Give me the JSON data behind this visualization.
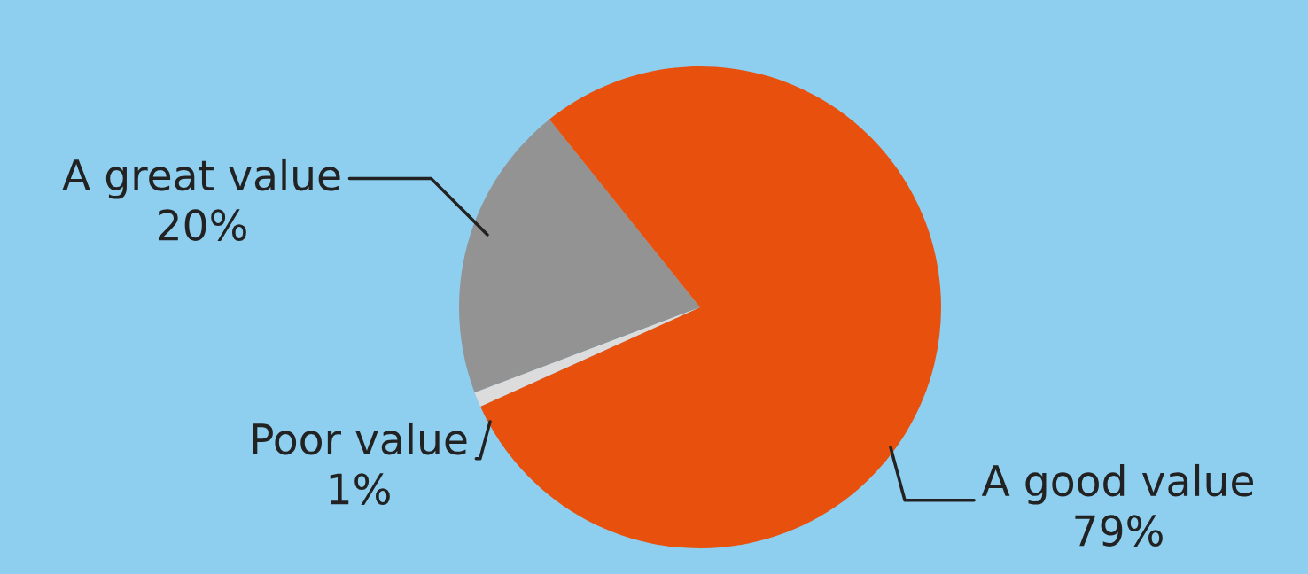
{
  "chart_data": {
    "type": "pie",
    "categories": [
      "A great value",
      "Poor value",
      "A good value"
    ],
    "values": [
      20,
      1,
      79
    ],
    "value_labels": [
      "20%",
      "1%",
      "79%"
    ],
    "colors": [
      "#939393",
      "#dcdcdc",
      "#e8500e"
    ]
  }
}
